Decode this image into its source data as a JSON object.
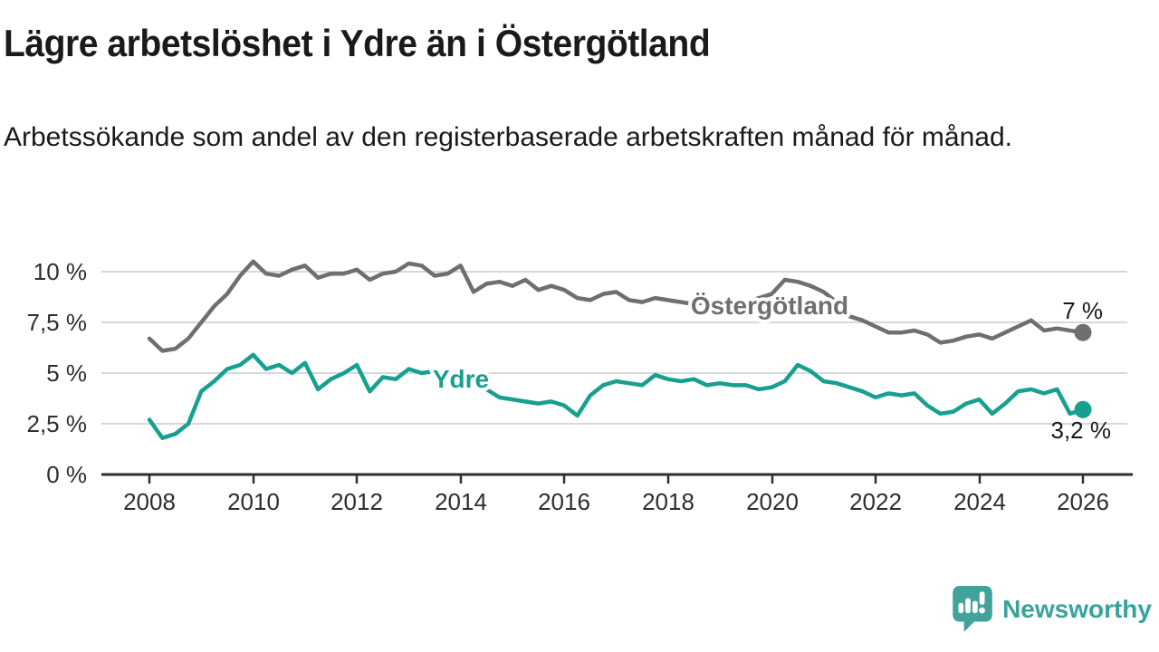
{
  "header": {
    "title": "Lägre arbetslöshet i Ydre än i Östergötland",
    "subtitle": "Arbetssökande som andel av den registerbaserade arbetskraften månad för månad."
  },
  "chart_data": {
    "type": "line",
    "x_unit": "year (monthly series, sampled quarterly)",
    "x_start": 2008,
    "x_step": 0.25,
    "xlim": [
      2007.1,
      2026.9
    ],
    "ylim": [
      0,
      11
    ],
    "grid": "horizontal",
    "x_tick_labels": [
      "2008",
      "2010",
      "2012",
      "2014",
      "2016",
      "2018",
      "2020",
      "2022",
      "2024",
      "2026"
    ],
    "y_tick_labels": [
      "0 %",
      "2,5 %",
      "5 %",
      "7,5 %",
      "10 %"
    ],
    "y_ticks": [
      0,
      2.5,
      5,
      7.5,
      10
    ],
    "series": [
      {
        "name": "Östergötland",
        "color": "#6f6f6f",
        "end_label": "7 %",
        "end_value": 7.0,
        "values": [
          6.7,
          6.1,
          6.2,
          6.7,
          7.5,
          8.3,
          8.9,
          9.8,
          10.5,
          9.9,
          9.8,
          10.1,
          10.3,
          9.7,
          9.9,
          9.9,
          10.1,
          9.6,
          9.9,
          10.0,
          10.4,
          10.3,
          9.8,
          9.9,
          10.3,
          9.0,
          9.4,
          9.5,
          9.3,
          9.6,
          9.1,
          9.3,
          9.1,
          8.7,
          8.6,
          8.9,
          9.0,
          8.6,
          8.5,
          8.7,
          8.6,
          8.5,
          8.4,
          8.5,
          8.5,
          8.4,
          8.5,
          8.7,
          8.9,
          9.6,
          9.5,
          9.3,
          9.0,
          8.5,
          7.8,
          7.6,
          7.3,
          7.0,
          7.0,
          7.1,
          6.9,
          6.5,
          6.6,
          6.8,
          6.9,
          6.7,
          7.0,
          7.3,
          7.6,
          7.1,
          7.2,
          7.1,
          7.0
        ]
      },
      {
        "name": "Ydre",
        "color": "#17a08f",
        "end_label": "3,2 %",
        "end_value": 3.2,
        "values": [
          2.7,
          1.8,
          2.0,
          2.5,
          4.1,
          4.6,
          5.2,
          5.4,
          5.9,
          5.2,
          5.4,
          5.0,
          5.5,
          4.2,
          4.7,
          5.0,
          5.4,
          4.1,
          4.8,
          4.7,
          5.2,
          5.0,
          5.1,
          4.9,
          4.8,
          4.6,
          4.2,
          3.8,
          3.7,
          3.6,
          3.5,
          3.6,
          3.4,
          2.9,
          3.9,
          4.4,
          4.6,
          4.5,
          4.4,
          4.9,
          4.7,
          4.6,
          4.7,
          4.4,
          4.5,
          4.4,
          4.4,
          4.2,
          4.3,
          4.6,
          5.4,
          5.1,
          4.6,
          4.5,
          4.3,
          4.1,
          3.8,
          4.0,
          3.9,
          4.0,
          3.4,
          3.0,
          3.1,
          3.5,
          3.7,
          3.0,
          3.5,
          4.1,
          4.2,
          4.0,
          4.2,
          3.0,
          3.2
        ]
      }
    ]
  },
  "branding": {
    "name": "Newsworthy",
    "logo_icon": "newsworthy-speech-bubble-bar-chart-icon",
    "color": "#38a39c"
  }
}
